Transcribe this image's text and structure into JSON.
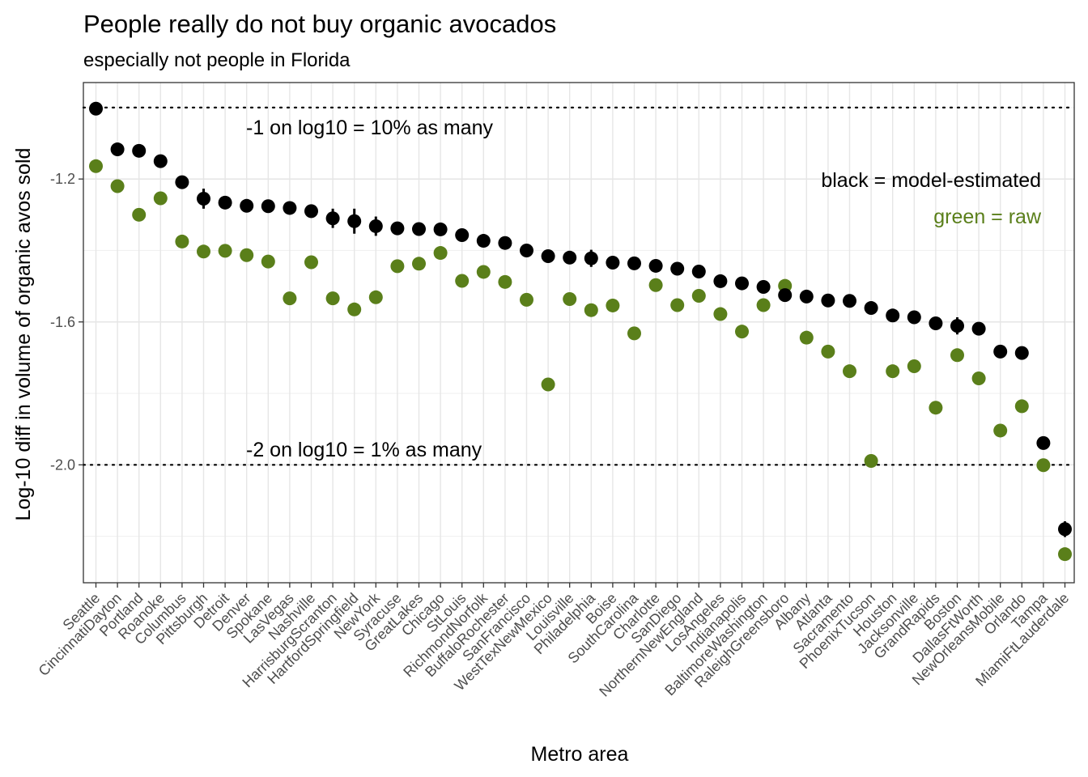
{
  "chart_data": {
    "type": "scatter",
    "title": "People really do not buy organic avocados",
    "subtitle": "especially not people in Florida",
    "xlabel": "Metro area",
    "ylabel": "Log-10 diff in volume of organic avos sold",
    "ylim": [
      -2.33,
      -0.93
    ],
    "yticks": [
      -1.2,
      -1.6,
      -2.0
    ],
    "ytick_labels": [
      "-1.2",
      "-1.6",
      "-2.0"
    ],
    "grid": true,
    "colors": {
      "model": "#000000",
      "raw": "#5a7f1a"
    },
    "categories": [
      "Seattle",
      "CincinnatiDayton",
      "Portland",
      "Roanoke",
      "Columbus",
      "Pittsburgh",
      "Detroit",
      "Denver",
      "Spokane",
      "LasVegas",
      "Nashville",
      "HarrisburgScranton",
      "HartfordSpringfield",
      "NewYork",
      "Syracuse",
      "GreatLakes",
      "Chicago",
      "StLouis",
      "RichmondNorfolk",
      "BuffaloRochester",
      "SanFrancisco",
      "WestTexNewMexico",
      "Louisville",
      "Philadelphia",
      "Boise",
      "SouthCarolina",
      "Charlotte",
      "SanDiego",
      "NorthernNewEngland",
      "LosAngeles",
      "Indianapolis",
      "BaltimoreWashington",
      "RaleighGreensboro",
      "Albany",
      "Atlanta",
      "Sacramento",
      "PhoenixTucson",
      "Houston",
      "Jacksonville",
      "GrandRapids",
      "Boston",
      "DallasFtWorth",
      "NewOrleansMobile",
      "Orlando",
      "Tampa",
      "MiamiFtLauderdale"
    ],
    "series": [
      {
        "name": "black = model-estimated",
        "values": [
          -1.003,
          -1.117,
          -1.121,
          -1.15,
          -1.209,
          -1.255,
          -1.266,
          -1.275,
          -1.276,
          -1.281,
          -1.29,
          -1.31,
          -1.318,
          -1.332,
          -1.338,
          -1.34,
          -1.341,
          -1.357,
          -1.373,
          -1.379,
          -1.4,
          -1.416,
          -1.42,
          -1.422,
          -1.434,
          -1.436,
          -1.443,
          -1.451,
          -1.459,
          -1.486,
          -1.492,
          -1.502,
          -1.525,
          -1.529,
          -1.54,
          -1.541,
          -1.561,
          -1.582,
          -1.587,
          -1.604,
          -1.611,
          -1.619,
          -1.683,
          -1.687,
          -1.939,
          -2.18
        ],
        "err": [
          0,
          0,
          0,
          0,
          0,
          0.028,
          0,
          0,
          0,
          0,
          0,
          0.027,
          0.035,
          0.027,
          0,
          0,
          0,
          0,
          0,
          0.017,
          0,
          0.013,
          0,
          0.024,
          0,
          0.016,
          0.016,
          0,
          0.015,
          0,
          0.014,
          0,
          0.016,
          0.016,
          0,
          0,
          0,
          0.017,
          0,
          0.014,
          0.024,
          0.014,
          0.014,
          0,
          0.014,
          0.022
        ]
      },
      {
        "name": "green = raw",
        "values": [
          -1.164,
          -1.22,
          -1.3,
          -1.254,
          -1.375,
          -1.403,
          -1.401,
          -1.413,
          -1.431,
          -1.534,
          -1.433,
          -1.534,
          -1.565,
          -1.531,
          -1.444,
          -1.437,
          -1.407,
          -1.485,
          -1.46,
          -1.488,
          -1.538,
          -1.775,
          -1.536,
          -1.567,
          -1.554,
          -1.632,
          -1.497,
          -1.553,
          -1.527,
          -1.578,
          -1.627,
          -1.553,
          -1.499,
          -1.644,
          -1.683,
          -1.738,
          -1.989,
          -1.738,
          -1.724,
          -1.84,
          -1.693,
          -1.758,
          -1.904,
          -1.836,
          -2.001,
          -2.25
        ],
        "err": [
          0,
          0,
          0,
          0,
          0,
          0.014,
          0,
          0,
          0,
          0,
          0,
          0.014,
          0.014,
          0.014,
          0,
          0,
          0,
          0,
          0,
          0,
          0,
          0,
          0,
          0.014,
          0,
          0,
          0,
          0,
          0,
          0,
          0,
          0,
          0,
          0,
          0,
          0,
          0,
          0,
          0,
          0.014,
          0.014,
          0,
          0,
          0,
          0,
          0
        ]
      }
    ],
    "reference_lines": [
      -1.0,
      -2.0
    ],
    "annotations": {
      "ref1": "-1 on log10 = 10% as many",
      "ref2": "-2 on log10 = 1% as many",
      "legend_model": "black = model-estimated",
      "legend_raw": "green = raw"
    }
  }
}
